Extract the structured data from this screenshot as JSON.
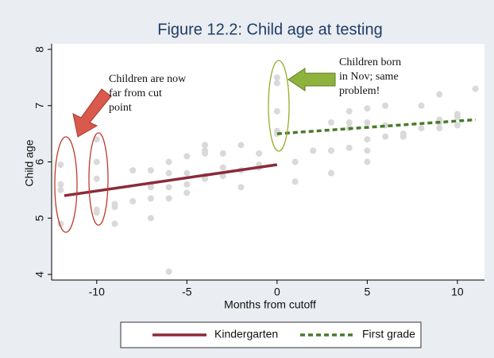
{
  "chart_data": {
    "type": "scatter",
    "title": "Figure 12.2: Child age at testing",
    "x_label": "Months from cutoff",
    "y_label": "Child age",
    "x": [
      -12,
      -12,
      -12,
      -12,
      -10,
      -10,
      -10,
      -10,
      -10,
      -9,
      -9,
      -9,
      -8,
      -8,
      -7,
      -7,
      -7,
      -7,
      -7,
      -6,
      -6,
      -6,
      -6,
      -6,
      -5,
      -5,
      -5,
      -5,
      -4,
      -4,
      -4,
      -4,
      -4,
      -3,
      -3,
      -3,
      -2,
      -2,
      -2,
      -1,
      -1,
      -1,
      0,
      0,
      0,
      0,
      0,
      1,
      1,
      2,
      3,
      3,
      3,
      4,
      4,
      4,
      4,
      5,
      5,
      5,
      5,
      5,
      6,
      6,
      6,
      7,
      7,
      8,
      8,
      9,
      9,
      9,
      9,
      10,
      10,
      10,
      11
    ],
    "values": [
      5.95,
      5.6,
      4.9,
      5.5,
      6.4,
      6.0,
      5.7,
      5.15,
      5.1,
      5.25,
      5.2,
      4.9,
      5.85,
      5.3,
      5.85,
      5.55,
      5.35,
      5.0,
      5.6,
      6.0,
      5.8,
      5.55,
      5.35,
      4.05,
      6.1,
      5.8,
      5.6,
      5.45,
      6.3,
      6.2,
      6.15,
      5.7,
      5.75,
      6.15,
      5.9,
      5.75,
      6.3,
      5.85,
      5.55,
      6.15,
      5.95,
      5.9,
      7.5,
      7.4,
      6.9,
      6.5,
      6.55,
      6.0,
      5.65,
      6.2,
      6.7,
      6.2,
      5.8,
      6.9,
      6.7,
      6.6,
      6.25,
      6.95,
      6.7,
      6.4,
      6.2,
      6.0,
      7.0,
      6.65,
      6.45,
      6.5,
      6.45,
      7.0,
      6.6,
      7.2,
      6.75,
      6.7,
      6.6,
      6.85,
      6.8,
      6.65,
      7.3
    ],
    "color": "#d9d9d9",
    "series": [
      {
        "name": "Kindergarten",
        "color": "#8b2a3a",
        "dashed": false,
        "x": [
          -11.8,
          0
        ],
        "values": [
          5.4,
          5.95
        ]
      },
      {
        "name": "First grade",
        "color": "#4a7a2a",
        "dashed": true,
        "x": [
          0,
          11
        ],
        "values": [
          6.5,
          6.75
        ]
      }
    ],
    "annotations": [
      {
        "lines": [
          "Children are now",
          "far from cut",
          "point"
        ]
      },
      {
        "lines": [
          "Children born",
          "in Nov; same",
          "problem!"
        ]
      }
    ],
    "xlim": [
      -12.5,
      11.5
    ],
    "ylim": [
      3.9,
      8.1
    ],
    "xticks": [
      -10,
      -5,
      0,
      5,
      10
    ],
    "yticks": [
      4,
      5,
      6,
      7,
      8
    ],
    "legend": "bottom"
  }
}
